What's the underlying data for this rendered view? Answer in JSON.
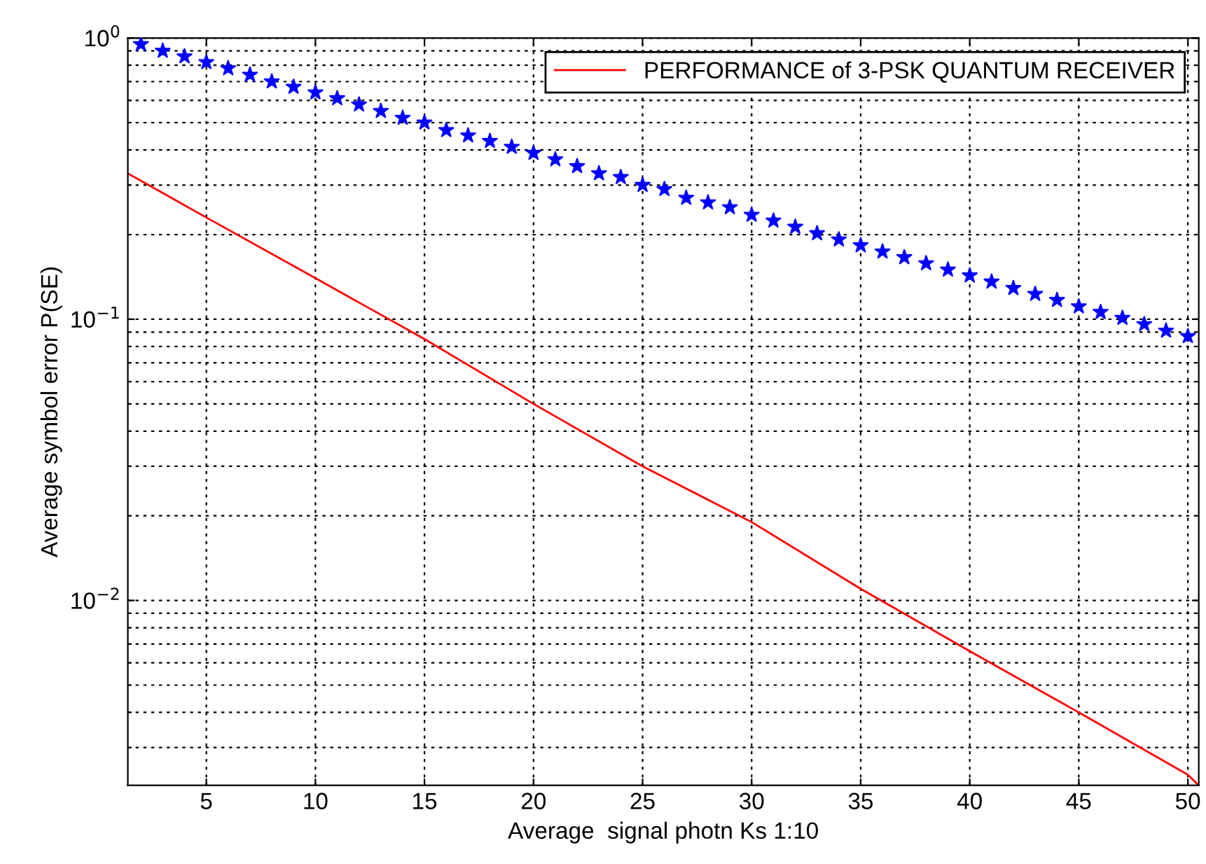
{
  "chart_data": {
    "type": "line",
    "xlabel": "Average  signal photn Ks 1:10",
    "ylabel": "Average symbol error P(SE)",
    "log": "y",
    "grid": true,
    "legend": "top right",
    "xlim": [
      1.4,
      50.5
    ],
    "xticks": [
      5,
      10,
      15,
      20,
      25,
      30,
      35,
      40,
      45,
      50
    ],
    "ylim": [
      0.0022,
      1
    ],
    "yticks": [
      {
        "value": 1,
        "label": "10$^{0}$"
      },
      {
        "value": 0.1,
        "label": "10$^{−1}$"
      },
      {
        "value": 0.01,
        "label": "10$^{−2}$"
      }
    ],
    "series": [
      {
        "name": "PERFORMANCE of 3-PSK QUANTUM RECEIVER",
        "color": "#ff0000",
        "marker": "none",
        "x": [
          1.4,
          5,
          10,
          15,
          20,
          25,
          30,
          35,
          40,
          45,
          50,
          50.5
        ],
        "values": [
          0.33,
          0.23,
          0.14,
          0.085,
          0.05,
          0.03,
          0.019,
          0.011,
          0.0066,
          0.004,
          0.0024,
          0.0022
        ]
      },
      {
        "color": "#0000ff",
        "type": "scatter",
        "marker": "star",
        "x": [
          2,
          3,
          4,
          5,
          6,
          7,
          8,
          9,
          10,
          11,
          12,
          13,
          14,
          15,
          16,
          17,
          18,
          19,
          20,
          21,
          22,
          23,
          24,
          25,
          26,
          27,
          28,
          29,
          30,
          31,
          32,
          33,
          34,
          35,
          36,
          37,
          38,
          39,
          40,
          41,
          42,
          43,
          44,
          45,
          46,
          47,
          48,
          49,
          50
        ],
        "values": [
          0.95,
          0.9,
          0.86,
          0.82,
          0.78,
          0.74,
          0.7,
          0.67,
          0.64,
          0.61,
          0.58,
          0.55,
          0.52,
          0.5,
          0.47,
          0.45,
          0.43,
          0.41,
          0.39,
          0.37,
          0.35,
          0.33,
          0.32,
          0.3,
          0.29,
          0.27,
          0.26,
          0.25,
          0.235,
          0.224,
          0.213,
          0.202,
          0.192,
          0.183,
          0.174,
          0.166,
          0.158,
          0.15,
          0.143,
          0.136,
          0.129,
          0.123,
          0.117,
          0.111,
          0.106,
          0.101,
          0.096,
          0.091,
          0.087
        ]
      }
    ]
  }
}
